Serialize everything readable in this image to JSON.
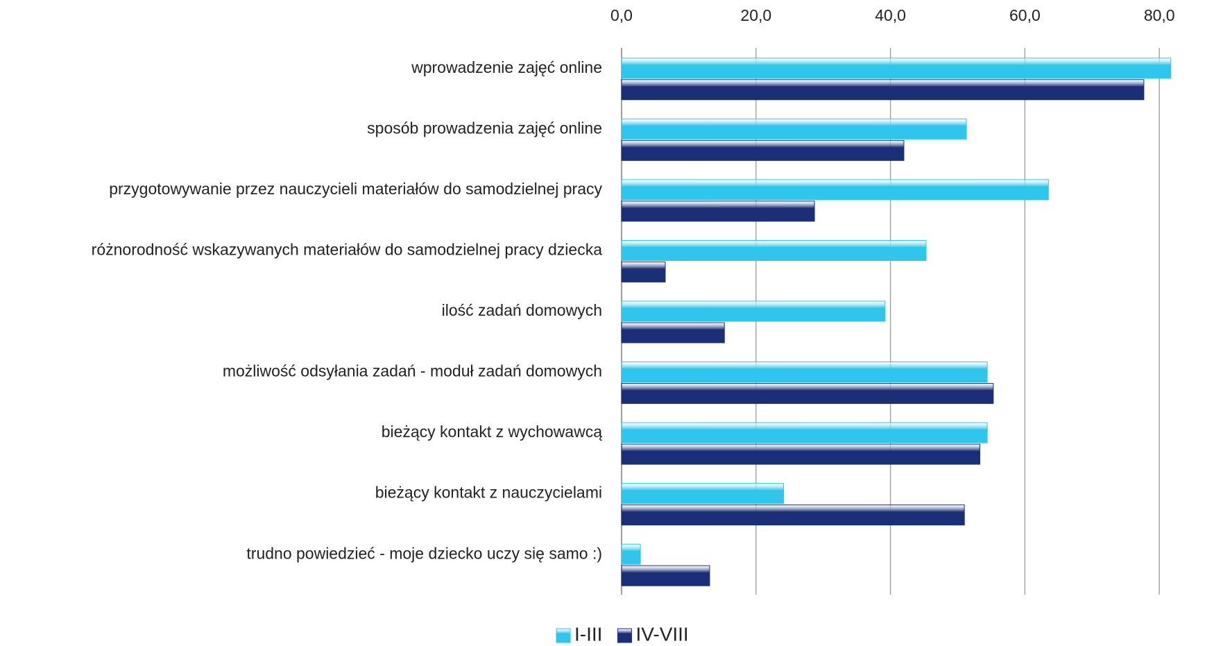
{
  "chart_data": {
    "type": "hbar",
    "categories": [
      "wprowadzenie zajęć online",
      "sposób prowadzenia zajęć online",
      "przygotowywanie przez nauczycieli materiałów do samodzielnej pracy",
      "różnorodność wskazywanych materiałów do samodzielnej pracy dziecka",
      "ilość zadań domowych",
      "możliwość odsyłania zadań - moduł zadań domowych",
      "bieżący kontakt z wychowawcą",
      "bieżący kontakt z nauczycielami",
      "trudno powiedzieć - moje dziecko uczy się samo :)"
    ],
    "series": [
      {
        "name": "I-III",
        "color": "#2ec6ec",
        "values": [
          81.7,
          51.3,
          63.5,
          45.3,
          39.2,
          54.4,
          54.4,
          24.1,
          2.8
        ]
      },
      {
        "name": "IV-VIII",
        "color": "#1b2f78",
        "values": [
          77.7,
          42.0,
          28.7,
          6.5,
          15.3,
          55.3,
          53.3,
          51.0,
          13.1
        ]
      }
    ],
    "xlim": [
      0,
      85
    ],
    "xticks": [
      {
        "value": 0,
        "label": "0,0"
      },
      {
        "value": 20,
        "label": "20,0"
      },
      {
        "value": 40,
        "label": "40,0"
      },
      {
        "value": 60,
        "label": "60,0"
      },
      {
        "value": 80,
        "label": "80,0"
      }
    ],
    "grid": true,
    "legend": "bottom"
  }
}
